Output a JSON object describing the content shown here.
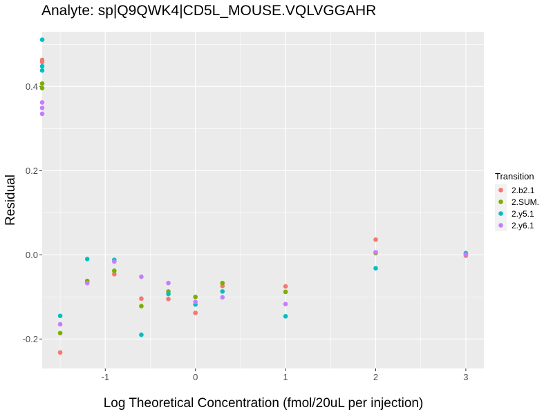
{
  "chart_data": {
    "type": "scatter",
    "title": "Analyte: sp|Q9QWK4|CD5L_MOUSE.VQLVGGAHR",
    "xlabel": "Log Theoretical Concentration (fmol/20uL per injection)",
    "ylabel": "Residual",
    "xlim": [
      -1.7,
      3.2
    ],
    "ylim": [
      -0.27,
      0.53
    ],
    "x_ticks": [
      -1,
      0,
      1,
      2,
      3
    ],
    "x_tick_labels": [
      "-1",
      "0",
      "1",
      "2",
      "3"
    ],
    "y_ticks": [
      -0.2,
      0.0,
      0.2,
      0.4
    ],
    "y_tick_labels": [
      "-0.2",
      "0.0",
      "0.2",
      "0.4"
    ],
    "grid": true,
    "legend": {
      "title": "Transition",
      "position": "right"
    },
    "series": [
      {
        "name": "2.b2.1",
        "color": "#F8766D",
        "points": [
          [
            -1.7,
            0.463
          ],
          [
            -1.7,
            0.458
          ],
          [
            -1.5,
            -0.232
          ],
          [
            -1.2,
            -0.063
          ],
          [
            -0.9,
            -0.046
          ],
          [
            -0.6,
            -0.104
          ],
          [
            -0.3,
            -0.105
          ],
          [
            0.0,
            -0.138
          ],
          [
            0.3,
            -0.074
          ],
          [
            1.0,
            -0.075
          ],
          [
            2.0,
            0.036
          ],
          [
            3.0,
            -0.002
          ]
        ]
      },
      {
        "name": "2.SUM.",
        "color": "#7CAE00",
        "points": [
          [
            -1.7,
            0.407
          ],
          [
            -1.7,
            0.396
          ],
          [
            -1.5,
            -0.186
          ],
          [
            -1.2,
            -0.062
          ],
          [
            -0.9,
            -0.038
          ],
          [
            -0.6,
            -0.122
          ],
          [
            -0.3,
            -0.087
          ],
          [
            0.0,
            -0.1
          ],
          [
            0.3,
            -0.067
          ],
          [
            1.0,
            -0.088
          ],
          [
            2.0,
            0.004
          ],
          [
            3.0,
            0.002
          ]
        ]
      },
      {
        "name": "2.y5.1",
        "color": "#00BFC4",
        "points": [
          [
            -1.7,
            0.511
          ],
          [
            -1.7,
            0.448
          ],
          [
            -1.7,
            0.438
          ],
          [
            -1.5,
            -0.145
          ],
          [
            -1.2,
            -0.01
          ],
          [
            -0.9,
            -0.012
          ],
          [
            -0.6,
            -0.19
          ],
          [
            -0.3,
            -0.093
          ],
          [
            0.0,
            -0.118
          ],
          [
            0.3,
            -0.087
          ],
          [
            1.0,
            -0.146
          ],
          [
            2.0,
            -0.032
          ],
          [
            3.0,
            0.004
          ]
        ]
      },
      {
        "name": "2.y6.1",
        "color": "#C77CFF",
        "points": [
          [
            -1.7,
            0.362
          ],
          [
            -1.7,
            0.349
          ],
          [
            -1.7,
            0.335
          ],
          [
            -1.5,
            -0.165
          ],
          [
            -1.2,
            -0.067
          ],
          [
            -0.9,
            -0.016
          ],
          [
            -0.6,
            -0.052
          ],
          [
            -0.3,
            -0.067
          ],
          [
            0.0,
            -0.112
          ],
          [
            0.3,
            -0.101
          ],
          [
            1.0,
            -0.117
          ],
          [
            2.0,
            0.006
          ],
          [
            3.0,
            0.001
          ]
        ]
      }
    ]
  }
}
